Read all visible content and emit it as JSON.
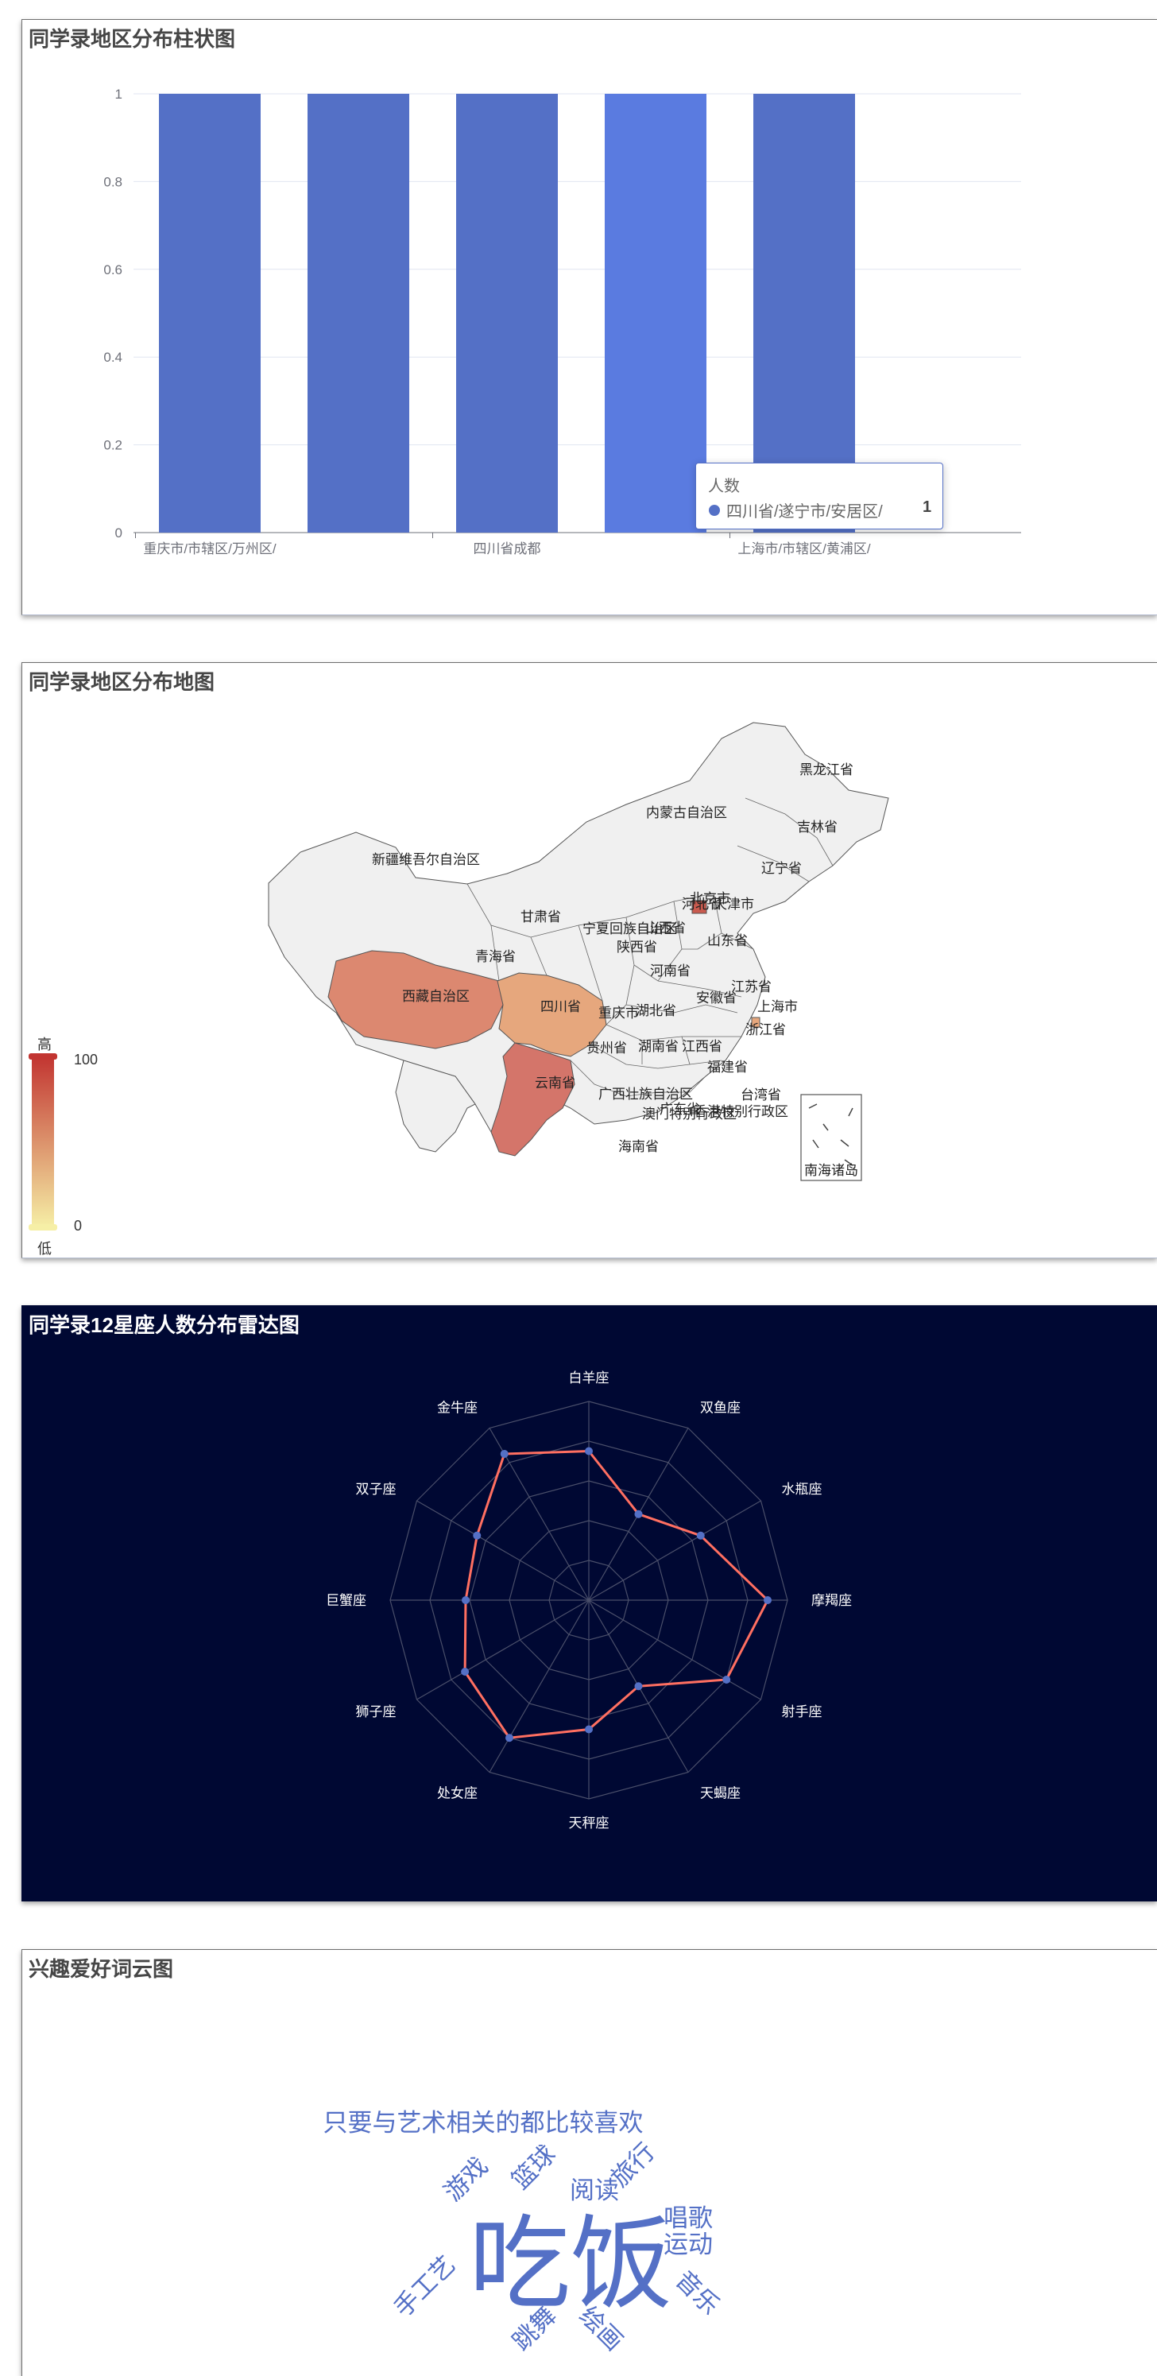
{
  "colors": {
    "bar": "#5470c6",
    "bar_highlight": "#5a7be0",
    "radar_bg": "#000833",
    "radar_line": "#ff6f61",
    "map_fill": "#f0f0f0",
    "visual_high": "#c23531",
    "visual_low": "#f6efa6"
  },
  "bar_panel": {
    "title": "同学录地区分布柱状图",
    "tooltip": {
      "series": "人数",
      "name": "四川省/遂宁市/安居区/",
      "value": "1"
    }
  },
  "map_panel": {
    "title": "同学录地区分布地图",
    "visual_map": {
      "high_label": "高",
      "low_label": "低",
      "max": "100",
      "min": "0"
    },
    "south_sea_label": "南海诸岛"
  },
  "radar_panel": {
    "title": "同学录12星座人数分布雷达图"
  },
  "wordcloud_panel": {
    "title": "兴趣爱好词云图"
  },
  "chart_data": [
    {
      "type": "bar",
      "title": "同学录地区分布柱状图",
      "categories": [
        "重庆市/市辖区/万州区/",
        "",
        "四川省成都",
        "四川省/遂宁市/安居区/",
        "上海市/市辖区/黄浦区/"
      ],
      "series": [
        {
          "name": "人数",
          "values": [
            1,
            1,
            1,
            1,
            1
          ]
        }
      ],
      "yticks": [
        "0",
        "0.2",
        "0.4",
        "0.6",
        "0.8",
        "1"
      ],
      "ylim": [
        0,
        1
      ],
      "grid": true
    },
    {
      "type": "map",
      "title": "同学录地区分布地图",
      "regions": [
        {
          "name": "西藏自治区",
          "value": 70,
          "shaded": true
        },
        {
          "name": "四川省",
          "value": 40,
          "shaded": true
        },
        {
          "name": "云南省",
          "value": 80,
          "shaded": true
        },
        {
          "name": "北京市",
          "value": 90,
          "shaded": true
        },
        {
          "name": "上海市",
          "value": 40,
          "shaded": true
        },
        {
          "name": "黑龙江省"
        },
        {
          "name": "吉林省"
        },
        {
          "name": "辽宁省"
        },
        {
          "name": "内蒙古自治区"
        },
        {
          "name": "新疆维吾尔自治区"
        },
        {
          "name": "甘肃省"
        },
        {
          "name": "青海省"
        },
        {
          "name": "宁夏回族自治区"
        },
        {
          "name": "陕西省"
        },
        {
          "name": "山西省"
        },
        {
          "name": "河北省"
        },
        {
          "name": "天津市"
        },
        {
          "name": "山东省"
        },
        {
          "name": "河南省"
        },
        {
          "name": "江苏省"
        },
        {
          "name": "安徽省"
        },
        {
          "name": "湖北省"
        },
        {
          "name": "重庆市"
        },
        {
          "name": "浙江省"
        },
        {
          "name": "贵州省"
        },
        {
          "name": "湖南省"
        },
        {
          "name": "江西省"
        },
        {
          "name": "福建省"
        },
        {
          "name": "台湾省"
        },
        {
          "name": "广西壮族自治区"
        },
        {
          "name": "广东省"
        },
        {
          "name": "香港特别行政区"
        },
        {
          "name": "澳门特别行政区"
        },
        {
          "name": "海南省"
        }
      ],
      "visual_range": [
        0,
        100
      ]
    },
    {
      "type": "radar",
      "title": "同学录12星座人数分布雷达图",
      "indicators": [
        "白羊座",
        "双鱼座",
        "水瓶座",
        "摩羯座",
        "射手座",
        "天蝎座",
        "天秤座",
        "处女座",
        "狮子座",
        "巨蟹座",
        "双子座",
        "金牛座"
      ],
      "values": [
        0.75,
        0.5,
        0.65,
        0.9,
        0.8,
        0.5,
        0.65,
        0.8,
        0.72,
        0.62,
        0.65,
        0.85
      ],
      "max": 1
    },
    {
      "type": "wordcloud",
      "title": "兴趣爱好词云图",
      "words": [
        {
          "text": "吃饭",
          "weight": 100
        },
        {
          "text": "只要与艺术相关的都比较喜欢",
          "weight": 30
        },
        {
          "text": "游戏",
          "weight": 30
        },
        {
          "text": "篮球",
          "weight": 30
        },
        {
          "text": "阅读",
          "weight": 30
        },
        {
          "text": "旅行",
          "weight": 30
        },
        {
          "text": "唱歌",
          "weight": 30
        },
        {
          "text": "运动",
          "weight": 30
        },
        {
          "text": "手工艺",
          "weight": 30
        },
        {
          "text": "音乐",
          "weight": 30
        },
        {
          "text": "跳舞",
          "weight": 30
        },
        {
          "text": "绘画",
          "weight": 30
        }
      ]
    }
  ]
}
